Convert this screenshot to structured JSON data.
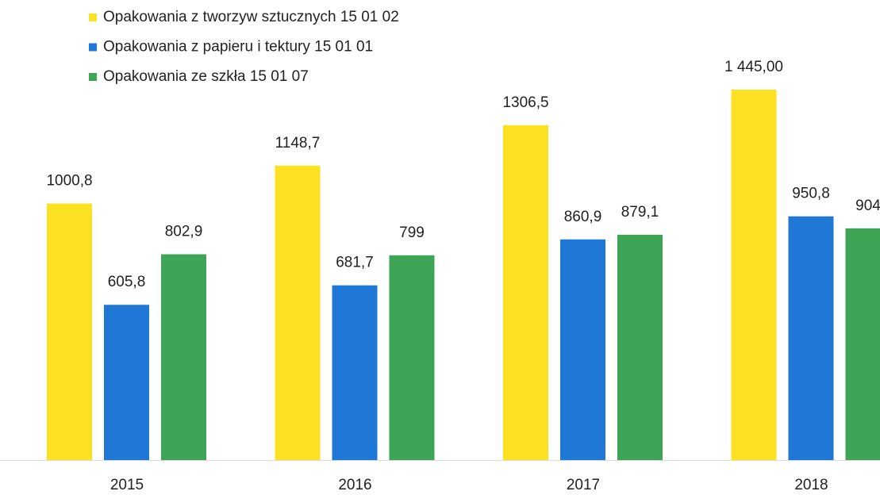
{
  "chart_data": {
    "type": "bar",
    "categories": [
      "2015",
      "2016",
      "2017",
      "2018"
    ],
    "series": [
      {
        "name": "Opakowania z tworzyw sztucznych 15 01 02",
        "color": "#fbe122",
        "values": [
          1000.8,
          1148.7,
          1306.5,
          1445.0
        ],
        "value_labels": [
          "1000,8",
          "1148,7",
          "1306,5",
          "1 445,00"
        ]
      },
      {
        "name": "Opakowania z papieru i tektury 15 01 01",
        "color": "#1f77d6",
        "values": [
          605.8,
          681.7,
          860.9,
          950.8
        ],
        "value_labels": [
          "605,8",
          "681,7",
          "860,9",
          "950,8"
        ]
      },
      {
        "name": "Opakowania ze szkła 15 01 07",
        "color": "#3fa556",
        "values": [
          802.9,
          799,
          879.1,
          904
        ],
        "value_labels": [
          "802,9",
          "799",
          "879,1",
          "904"
        ]
      }
    ],
    "legend": "top-left"
  }
}
